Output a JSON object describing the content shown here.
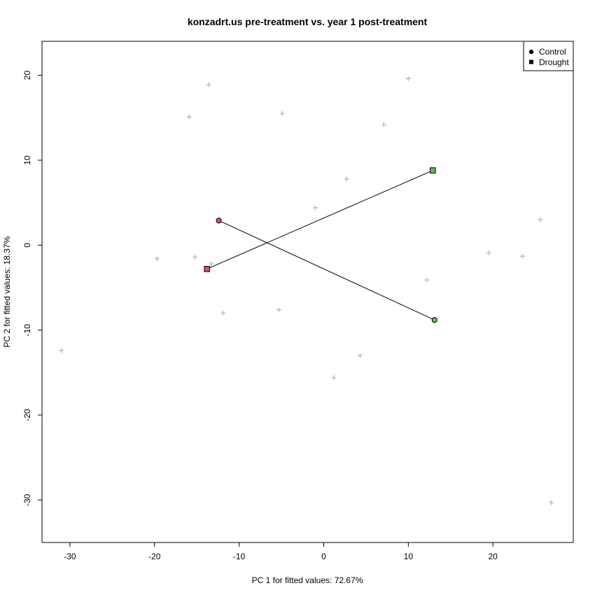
{
  "chart_data": {
    "type": "scatter",
    "title": "konzadrt.us pre-treatment vs. year 1 post-treatment",
    "xlabel": "PC 1 for fitted values: 72.67%",
    "ylabel": "PC 2 for fitted values: 18.37%",
    "xlim": [
      -33.3,
      29.5
    ],
    "ylim": [
      -35.0,
      24.0
    ],
    "xticks": [
      -30,
      -20,
      -10,
      0,
      10,
      20
    ],
    "yticks": [
      20,
      10,
      0,
      -10,
      -20,
      -30
    ],
    "background_points": [
      [
        -31,
        -12.4
      ],
      [
        -19.7,
        -1.6
      ],
      [
        -15.9,
        15.1
      ],
      [
        -15.2,
        -1.4
      ],
      [
        -13.6,
        18.9
      ],
      [
        -13.3,
        -2.2
      ],
      [
        -11.9,
        -8.0
      ],
      [
        -5.3,
        -7.6
      ],
      [
        -4.9,
        15.5
      ],
      [
        -1.0,
        4.4
      ],
      [
        1.2,
        -15.6
      ],
      [
        2.7,
        7.8
      ],
      [
        4.3,
        -13.0
      ],
      [
        7.1,
        14.2
      ],
      [
        10.0,
        19.6
      ],
      [
        12.2,
        -4.1
      ],
      [
        19.5,
        -0.9
      ],
      [
        23.5,
        -1.3
      ],
      [
        25.6,
        3.0
      ],
      [
        26.9,
        -30.3
      ]
    ],
    "series": [
      {
        "name": "Control",
        "marker": "circle",
        "points": [
          {
            "x": -12.4,
            "y": 2.9,
            "color": "#d9505e"
          },
          {
            "x": 13.1,
            "y": -8.8,
            "color": "#5bbf4e"
          }
        ]
      },
      {
        "name": "Drought",
        "marker": "square",
        "points": [
          {
            "x": -13.8,
            "y": -2.8,
            "color": "#d9505e"
          },
          {
            "x": 12.9,
            "y": 8.8,
            "color": "#5bbf4e"
          }
        ]
      }
    ],
    "legend": {
      "position": "top-right",
      "entries": [
        "Control",
        "Drought"
      ]
    },
    "grid": false
  }
}
